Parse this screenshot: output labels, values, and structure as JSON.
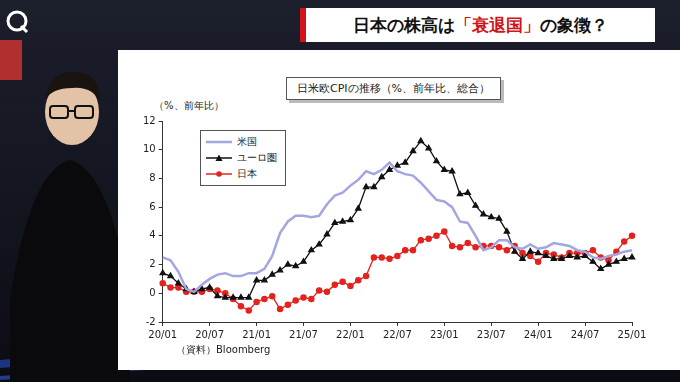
{
  "header": {
    "title": "日本の株高は「衰退国」の象徴？"
  },
  "chart_data": {
    "type": "line",
    "title": "日米欧CPIの推移（%、前年比、総合）",
    "ylabel": "（%、前年比）",
    "source": "（資料）Bloomberg",
    "categories": [
      "20/01",
      null,
      null,
      null,
      null,
      null,
      "20/07",
      null,
      null,
      null,
      null,
      null,
      "21/01",
      null,
      null,
      null,
      null,
      null,
      "21/07",
      null,
      null,
      null,
      null,
      null,
      "22/01",
      null,
      null,
      null,
      null,
      null,
      "22/07",
      null,
      null,
      null,
      null,
      null,
      "23/01",
      null,
      null,
      null,
      null,
      null,
      "23/07",
      null,
      null,
      null,
      null,
      null,
      "24/01",
      null,
      null,
      null,
      null,
      null,
      "24/07",
      null,
      null,
      null,
      null,
      null,
      "25/01"
    ],
    "series": [
      {
        "name": "米国",
        "color": "#a3a6e2",
        "marker": "none",
        "line_style": "solid",
        "values": [
          2.5,
          2.3,
          1.5,
          0.3,
          0.1,
          0.6,
          1.0,
          1.3,
          1.4,
          1.2,
          1.2,
          1.4,
          1.4,
          1.7,
          2.6,
          4.2,
          5.0,
          5.4,
          5.4,
          5.3,
          5.4,
          6.2,
          6.8,
          7.0,
          7.5,
          7.9,
          8.5,
          8.3,
          8.6,
          9.1,
          8.5,
          8.3,
          8.2,
          7.7,
          7.1,
          6.5,
          6.4,
          6.0,
          5.0,
          4.9,
          4.0,
          3.0,
          3.2,
          3.7,
          3.7,
          3.2,
          3.1,
          3.4,
          3.1,
          3.2,
          3.5,
          3.4,
          3.3,
          3.0,
          2.9,
          2.5,
          2.4,
          2.6,
          2.7,
          2.9,
          3.0
        ]
      },
      {
        "name": "ユーロ圏",
        "color": "#111111",
        "marker": "triangle",
        "line_style": "solid",
        "values": [
          1.4,
          1.2,
          0.7,
          0.3,
          0.1,
          0.3,
          0.4,
          -0.2,
          -0.3,
          -0.3,
          -0.3,
          -0.3,
          0.9,
          0.9,
          1.3,
          1.6,
          2.0,
          1.9,
          2.2,
          3.0,
          3.4,
          4.1,
          4.9,
          5.0,
          5.1,
          5.9,
          7.4,
          7.4,
          8.1,
          8.6,
          8.9,
          9.1,
          9.9,
          10.6,
          10.1,
          9.2,
          8.6,
          8.5,
          6.9,
          7.0,
          6.1,
          5.5,
          5.3,
          5.2,
          4.3,
          2.9,
          2.4,
          2.9,
          2.8,
          2.6,
          2.4,
          2.4,
          2.6,
          2.5,
          2.6,
          2.2,
          1.7,
          2.0,
          2.2,
          2.4,
          2.5
        ]
      },
      {
        "name": "日本",
        "color": "#e3231d",
        "marker": "circle",
        "line_style": "solid",
        "values": [
          0.7,
          0.4,
          0.4,
          0.1,
          0.1,
          0.1,
          0.3,
          0.2,
          0.0,
          -0.4,
          -0.9,
          -1.2,
          -0.6,
          -0.4,
          -0.2,
          -1.1,
          -0.8,
          -0.5,
          -0.3,
          -0.4,
          0.2,
          0.1,
          0.6,
          0.8,
          0.5,
          0.9,
          1.2,
          2.5,
          2.5,
          2.4,
          2.6,
          3.0,
          3.0,
          3.7,
          3.8,
          4.0,
          4.3,
          3.3,
          3.2,
          3.5,
          3.2,
          3.3,
          3.3,
          3.2,
          3.0,
          3.3,
          2.8,
          2.6,
          2.2,
          2.8,
          2.7,
          2.5,
          2.8,
          2.8,
          2.8,
          3.0,
          2.5,
          2.3,
          2.9,
          3.6,
          4.0
        ]
      }
    ],
    "ylim": [
      -2,
      12
    ],
    "yticks": [
      -2,
      0,
      2,
      4,
      6,
      8,
      10,
      12
    ],
    "grid": false,
    "legend": "upper left"
  }
}
